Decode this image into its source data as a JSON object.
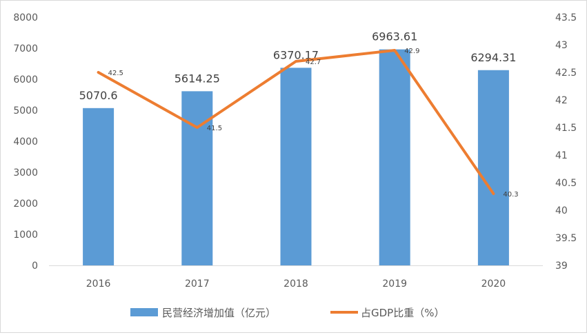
{
  "chart_data": {
    "type": "bar+line",
    "categories": [
      "2016",
      "2017",
      "2018",
      "2019",
      "2020"
    ],
    "series": [
      {
        "name": "民营经济增加值（亿元）",
        "type": "bar",
        "axis": "left",
        "color": "#5b9bd5",
        "values": [
          5070.6,
          5614.25,
          6370.17,
          6963.61,
          6294.31
        ],
        "labels": [
          "5070.6",
          "5614.25",
          "6370.17",
          "6963.61",
          "6294.31"
        ]
      },
      {
        "name": "占GDP比重（%）",
        "type": "line",
        "axis": "right",
        "color": "#ed7d31",
        "values": [
          42.5,
          41.5,
          42.7,
          42.9,
          40.3
        ],
        "labels": [
          "42.5",
          "41.5",
          "42.7",
          "42.9",
          "40.3"
        ]
      }
    ],
    "y_left": {
      "lim": [
        0,
        8000
      ],
      "ticks": [
        "0",
        "1000",
        "2000",
        "3000",
        "4000",
        "5000",
        "6000",
        "7000",
        "8000"
      ]
    },
    "y_right": {
      "lim": [
        39,
        43.5
      ],
      "ticks": [
        "39",
        "39.5",
        "40",
        "40.5",
        "41",
        "41.5",
        "42",
        "42.5",
        "43",
        "43.5"
      ]
    },
    "legend_position": "bottom",
    "grid": false
  }
}
